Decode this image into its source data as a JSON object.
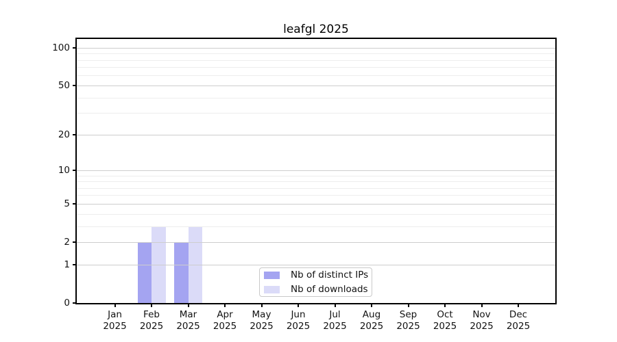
{
  "chart_data": {
    "type": "bar",
    "title": "leafgl 2025",
    "x": [
      "Jan",
      "Feb",
      "Mar",
      "Apr",
      "May",
      "Jun",
      "Jul",
      "Aug",
      "Sep",
      "Oct",
      "Nov",
      "Dec"
    ],
    "x_year": "2025",
    "series": [
      {
        "name": "Nb of distinct IPs",
        "color": "#a4a4f1",
        "values": [
          0,
          2,
          2,
          0,
          0,
          0,
          0,
          0,
          0,
          0,
          0,
          0
        ]
      },
      {
        "name": "Nb of downloads",
        "color": "#dbdbf8",
        "values": [
          0,
          3,
          3,
          0,
          0,
          0,
          0,
          0,
          0,
          0,
          0,
          0
        ]
      }
    ],
    "y_scale": "log1p",
    "y_ticks": [
      0,
      1,
      2,
      5,
      10,
      20,
      50,
      100
    ],
    "y_minor_grid": [
      3,
      4,
      6,
      7,
      8,
      9,
      30,
      40,
      60,
      70,
      80,
      90
    ],
    "ylim": [
      0,
      118
    ],
    "grid": true,
    "legend": {
      "position": "lower center",
      "entries": [
        "Nb of distinct IPs",
        "Nb of downloads"
      ]
    },
    "colors": {
      "axis": "#000000",
      "major_grid": "#cdcdcd",
      "minor_grid": "#ededed",
      "legend_border": "#c9c9c9",
      "background": "#ffffff"
    }
  }
}
